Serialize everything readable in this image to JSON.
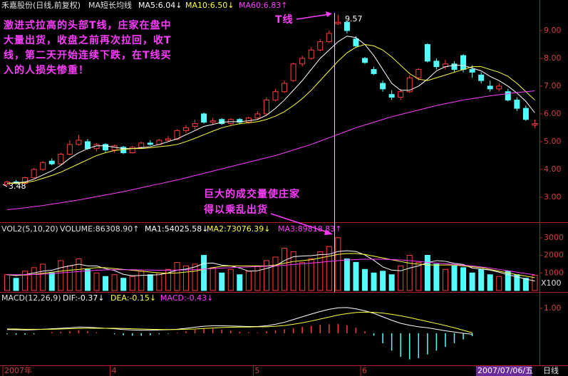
{
  "chart_data": {
    "type": "candlestick",
    "title": "禾嘉股份(日线,前复权)",
    "indicator": "MA短长均线",
    "categories": [
      "2007年",
      null,
      null,
      null,
      null,
      null,
      null,
      null,
      null,
      null,
      null,
      null,
      "4",
      null,
      null,
      null,
      null,
      null,
      null,
      null,
      null,
      null,
      null,
      null,
      null,
      null,
      null,
      null,
      "5",
      null,
      null,
      null,
      null,
      null,
      null,
      null,
      null,
      null,
      null,
      null,
      "6",
      null,
      null,
      null,
      null,
      null,
      null,
      null,
      null,
      null,
      null,
      null,
      null,
      null,
      null,
      null,
      null,
      null,
      null,
      null
    ],
    "open": [
      3.45,
      3.55,
      3.5,
      3.7,
      4.0,
      4.3,
      4.2,
      4.55,
      4.9,
      5.0,
      4.75,
      4.9,
      4.7,
      4.8,
      4.6,
      4.8,
      4.95,
      4.9,
      5.05,
      5.1,
      5.4,
      5.55,
      6.0,
      5.7,
      5.8,
      5.65,
      5.8,
      5.7,
      5.85,
      6.0,
      6.5,
      6.8,
      7.2,
      7.8,
      8.0,
      8.3,
      8.6,
      9.25,
      9.3,
      8.7,
      8.0,
      7.6,
      7.1,
      6.7,
      6.6,
      6.8,
      7.3,
      8.5,
      7.9,
      7.7,
      7.8,
      8.1,
      7.6,
      7.4,
      7.0,
      6.9,
      6.8,
      6.5,
      6.2,
      5.6
    ],
    "high": [
      3.6,
      3.62,
      3.75,
      4.05,
      4.3,
      4.4,
      4.6,
      5.05,
      5.25,
      5.1,
      4.95,
      4.95,
      4.9,
      4.85,
      4.85,
      5.0,
      5.05,
      5.1,
      5.2,
      5.45,
      5.6,
      5.8,
      6.05,
      5.85,
      5.85,
      5.85,
      5.85,
      5.9,
      6.1,
      6.6,
      6.9,
      7.2,
      7.85,
      8.1,
      8.4,
      8.7,
      9.0,
      9.57,
      9.35,
      8.8,
      8.05,
      7.7,
      7.2,
      6.85,
      6.9,
      7.4,
      7.65,
      8.55,
      8.0,
      7.95,
      7.9,
      8.15,
      7.75,
      7.5,
      7.2,
      7.1,
      6.9,
      6.6,
      6.3,
      5.8
    ],
    "low": [
      3.48,
      3.45,
      3.48,
      3.68,
      3.95,
      4.15,
      4.18,
      4.5,
      4.85,
      4.7,
      4.65,
      4.62,
      4.6,
      4.55,
      4.58,
      4.75,
      4.85,
      4.88,
      5.0,
      5.05,
      5.3,
      5.45,
      5.65,
      5.6,
      5.6,
      5.6,
      5.62,
      5.65,
      5.8,
      5.95,
      6.45,
      6.75,
      7.15,
      7.7,
      7.95,
      8.25,
      8.55,
      9.2,
      8.9,
      8.4,
      7.8,
      7.4,
      6.8,
      6.5,
      6.5,
      6.75,
      7.2,
      7.85,
      7.6,
      7.6,
      7.5,
      7.5,
      7.3,
      7.1,
      6.8,
      6.8,
      6.45,
      6.1,
      5.75,
      5.5
    ],
    "close": [
      3.55,
      3.5,
      3.7,
      4.0,
      4.25,
      4.2,
      4.55,
      4.9,
      5.05,
      4.75,
      4.9,
      4.7,
      4.85,
      4.6,
      4.8,
      4.95,
      4.9,
      5.05,
      5.1,
      5.4,
      5.5,
      5.65,
      5.7,
      5.75,
      5.65,
      5.8,
      5.7,
      5.85,
      6.0,
      6.5,
      6.8,
      7.1,
      7.8,
      8.0,
      8.3,
      8.6,
      8.9,
      9.3,
      9.0,
      8.45,
      7.85,
      7.45,
      6.9,
      6.6,
      6.8,
      7.3,
      7.6,
      7.9,
      7.7,
      7.8,
      7.6,
      7.6,
      7.5,
      7.2,
      6.9,
      7.0,
      6.5,
      6.2,
      5.8,
      5.65
    ],
    "up_color": "#ff3c3c",
    "down_color": "#54fcfc",
    "series": [
      {
        "name": "MA5:6.04↓",
        "color": "#ffffff",
        "values": [
          3.5,
          3.52,
          3.55,
          3.65,
          3.8,
          3.95,
          4.15,
          4.4,
          4.6,
          4.75,
          4.85,
          4.85,
          4.8,
          4.75,
          4.75,
          4.78,
          4.82,
          4.9,
          5.0,
          5.1,
          5.25,
          5.4,
          5.55,
          5.62,
          5.7,
          5.72,
          5.72,
          5.75,
          5.8,
          5.95,
          6.2,
          6.5,
          6.85,
          7.2,
          7.6,
          8.0,
          8.3,
          8.6,
          8.8,
          8.75,
          8.5,
          8.1,
          7.6,
          7.1,
          6.85,
          6.85,
          7.0,
          7.25,
          7.55,
          7.7,
          7.75,
          7.75,
          7.65,
          7.55,
          7.35,
          7.2,
          7.0,
          6.75,
          6.45,
          6.04
        ]
      },
      {
        "name": "MA10:6.50↓",
        "color": "#ffff3c",
        "values": [
          3.5,
          3.5,
          3.52,
          3.58,
          3.68,
          3.78,
          3.9,
          4.05,
          4.2,
          4.35,
          4.5,
          4.6,
          4.68,
          4.72,
          4.75,
          4.75,
          4.78,
          4.82,
          4.85,
          4.9,
          5.0,
          5.12,
          5.25,
          5.38,
          5.5,
          5.58,
          5.65,
          5.68,
          5.72,
          5.8,
          5.92,
          6.08,
          6.3,
          6.55,
          6.85,
          7.2,
          7.55,
          7.9,
          8.2,
          8.4,
          8.5,
          8.45,
          8.3,
          8.05,
          7.75,
          7.45,
          7.25,
          7.2,
          7.3,
          7.4,
          7.5,
          7.6,
          7.7,
          7.7,
          7.6,
          7.5,
          7.35,
          7.1,
          6.8,
          6.5
        ]
      },
      {
        "name": "MA60:6.83↑",
        "color": "#ff3cff",
        "values": [
          2.55,
          2.58,
          2.62,
          2.66,
          2.7,
          2.75,
          2.8,
          2.85,
          2.9,
          2.96,
          3.02,
          3.08,
          3.14,
          3.2,
          3.27,
          3.34,
          3.41,
          3.48,
          3.55,
          3.62,
          3.7,
          3.78,
          3.86,
          3.94,
          4.02,
          4.1,
          4.18,
          4.26,
          4.34,
          4.42,
          4.5,
          4.6,
          4.7,
          4.8,
          4.9,
          5.02,
          5.14,
          5.26,
          5.38,
          5.5,
          5.6,
          5.7,
          5.8,
          5.9,
          5.98,
          6.06,
          6.14,
          6.22,
          6.3,
          6.37,
          6.43,
          6.5,
          6.55,
          6.6,
          6.65,
          6.69,
          6.73,
          6.77,
          6.8,
          6.83
        ]
      }
    ],
    "ylim": [
      2.1,
      9.64
    ],
    "yticks": [
      {
        "value": 3,
        "label": "3.00"
      },
      {
        "value": 4,
        "label": "4.00"
      },
      {
        "value": 5,
        "label": "5.00"
      },
      {
        "value": 6,
        "label": "6.00"
      },
      {
        "value": 7,
        "label": "7.00"
      },
      {
        "value": 8,
        "label": "8.00"
      },
      {
        "value": 9,
        "label": "9.00"
      }
    ],
    "annotations": {
      "t_line": "T线",
      "note": [
        "激进式拉高的头部T线，庄家在盘中",
        "大量出货，收盘之前再次拉回，收T",
        "线，第二天开始连续下跌，在T线买",
        "入的人损失惨重！"
      ],
      "volume_note": [
        "巨大的成交量使庄家",
        "得以乘乱出货"
      ]
    },
    "volume": {
      "title": "VOL2(5,10,20)",
      "name": "VOLUME:86308.90↑",
      "values": [
        900,
        700,
        1100,
        1300,
        1500,
        1000,
        1700,
        1400,
        1800,
        1200,
        1000,
        800,
        900,
        700,
        800,
        1100,
        900,
        1000,
        1200,
        1600,
        1400,
        1500,
        2000,
        1300,
        1000,
        1200,
        900,
        1100,
        1400,
        1700,
        1900,
        2400,
        2200,
        1600,
        1800,
        2200,
        2500,
        3000,
        1800,
        1600,
        1200,
        1000,
        1100,
        900,
        1400,
        2000,
        1600,
        2000,
        1500,
        1200,
        1400,
        1300,
        1000,
        1200,
        900,
        800,
        1100,
        900,
        700,
        863
      ],
      "series": [
        {
          "name": "MA1:54025.58↓",
          "color": "#ffffff",
          "values": [
            900,
            850,
            900,
            1000,
            1100,
            1150,
            1300,
            1400,
            1500,
            1400,
            1400,
            1240,
            1140,
            920,
            840,
            860,
            880,
            900,
            1000,
            1160,
            1220,
            1340,
            1540,
            1560,
            1440,
            1400,
            1280,
            1100,
            1120,
            1260,
            1400,
            1700,
            1920,
            1960,
            1980,
            2040,
            2060,
            2220,
            2260,
            2220,
            2020,
            1720,
            1340,
            1160,
            1120,
            1280,
            1400,
            1580,
            1700,
            1660,
            1540,
            1480,
            1280,
            1220,
            1160,
            1040,
            900,
            780,
            650,
            540
          ]
        },
        {
          "name": "MA2:73076.39↓",
          "color": "#ffff3c",
          "values": [
            900,
            880,
            880,
            920,
            980,
            1040,
            1100,
            1150,
            1200,
            1250,
            1300,
            1300,
            1250,
            1200,
            1150,
            1100,
            1050,
            1000,
            980,
            1000,
            1050,
            1100,
            1200,
            1300,
            1380,
            1400,
            1400,
            1400,
            1400,
            1400,
            1450,
            1550,
            1650,
            1700,
            1750,
            1850,
            1950,
            2050,
            2100,
            2100,
            2050,
            1950,
            1850,
            1750,
            1650,
            1550,
            1500,
            1450,
            1450,
            1450,
            1450,
            1400,
            1350,
            1300,
            1200,
            1100,
            1000,
            900,
            820,
            730
          ]
        },
        {
          "name": "MA3:89818.83↑",
          "color": "#ff3cff",
          "values": [
            900,
            900,
            900,
            910,
            930,
            960,
            1000,
            1040,
            1080,
            1120,
            1150,
            1170,
            1180,
            1180,
            1180,
            1170,
            1160,
            1150,
            1150,
            1160,
            1170,
            1190,
            1220,
            1250,
            1280,
            1300,
            1320,
            1340,
            1360,
            1380,
            1400,
            1440,
            1480,
            1520,
            1560,
            1600,
            1650,
            1700,
            1740,
            1760,
            1780,
            1780,
            1780,
            1760,
            1740,
            1700,
            1650,
            1600,
            1560,
            1520,
            1480,
            1440,
            1400,
            1340,
            1280,
            1200,
            1120,
            1040,
            960,
            898
          ]
        }
      ],
      "ylim": [
        0,
        3800
      ],
      "yticks": [
        1000,
        2000,
        3000
      ],
      "unit": "X100"
    },
    "macd": {
      "title": "MACD(12,26,9)",
      "series": [
        {
          "name": "DIF:-0.37↓",
          "color": "#ffffff",
          "values": [
            0.15,
            0.14,
            0.13,
            0.14,
            0.16,
            0.18,
            0.2,
            0.22,
            0.25,
            0.24,
            0.22,
            0.2,
            0.18,
            0.15,
            0.13,
            0.12,
            0.12,
            0.13,
            0.14,
            0.16,
            0.2,
            0.24,
            0.28,
            0.3,
            0.3,
            0.29,
            0.28,
            0.27,
            0.27,
            0.3,
            0.36,
            0.44,
            0.55,
            0.66,
            0.77,
            0.87,
            0.96,
            1.02,
            1.03,
            0.98,
            0.9,
            0.8,
            0.66,
            0.52,
            0.4,
            0.32,
            0.26,
            0.22,
            0.16,
            0.1,
            0.05,
            0.0,
            -0.04,
            null,
            null,
            null,
            null,
            null,
            null,
            null
          ]
        },
        {
          "name": "DEA:-0.15↓",
          "color": "#ffff3c",
          "values": [
            0.17,
            0.17,
            0.16,
            0.16,
            0.16,
            0.16,
            0.17,
            0.18,
            0.19,
            0.2,
            0.2,
            0.2,
            0.2,
            0.19,
            0.18,
            0.17,
            0.16,
            0.15,
            0.15,
            0.15,
            0.16,
            0.17,
            0.19,
            0.21,
            0.23,
            0.24,
            0.25,
            0.25,
            0.26,
            0.26,
            0.28,
            0.31,
            0.36,
            0.42,
            0.49,
            0.57,
            0.65,
            0.73,
            0.79,
            0.83,
            0.85,
            0.84,
            0.81,
            0.76,
            0.7,
            0.63,
            0.55,
            0.47,
            0.39,
            0.31,
            0.22,
            0.12,
            0.02,
            null,
            null,
            null,
            null,
            null,
            null,
            null
          ]
        }
      ],
      "histogram": {
        "name": "MACD:-0.43↓",
        "color": "#ff3cff",
        "values": [
          -0.04,
          -0.06,
          -0.06,
          -0.04,
          0,
          0.04,
          0.06,
          0.08,
          0.12,
          0.08,
          0.04,
          0,
          -0.04,
          -0.08,
          -0.1,
          -0.1,
          -0.08,
          -0.04,
          -0.02,
          0.02,
          0.08,
          0.14,
          0.18,
          0.18,
          0.14,
          0.1,
          0.06,
          0.04,
          0.02,
          0.08,
          0.12,
          0.16,
          0.2,
          0.26,
          0.3,
          0.34,
          0.36,
          0.37,
          0.32,
          0.22,
          0.08,
          -0.1,
          -0.4,
          -0.7,
          -0.95,
          -1.05,
          -1.0,
          -0.85,
          -0.7,
          -0.55,
          -0.4,
          -0.25,
          -0.12,
          null,
          null,
          null,
          null,
          null,
          null,
          null
        ]
      },
      "ylim": [
        -1.26,
        1.6
      ],
      "yticks": [
        {
          "value": 1,
          "label": "1.00"
        }
      ]
    },
    "status": {
      "date": "2007/07/06/五",
      "period": "日线"
    }
  }
}
